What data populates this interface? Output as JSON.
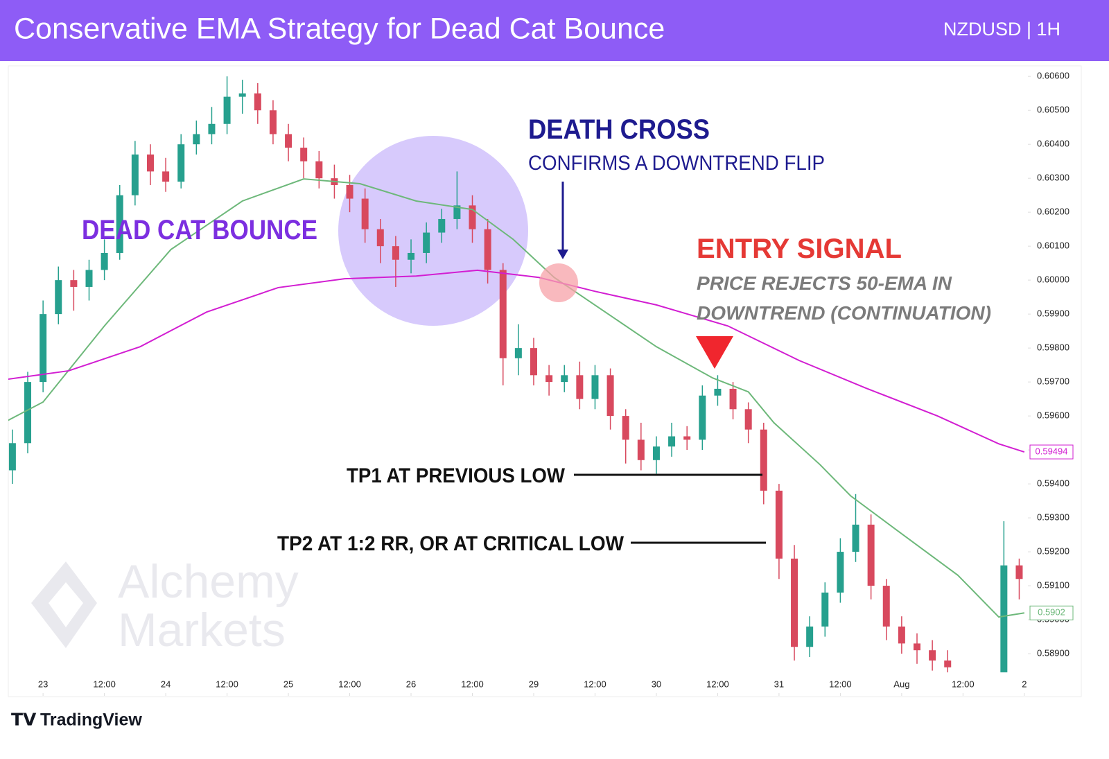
{
  "chart_data": {
    "type": "candlestick",
    "title": "Conservative EMA Strategy for Dead Cat Bounce",
    "subtitle": "NZDUSD | 1H",
    "up_color": "#26a08e",
    "down_color": "#d8495e",
    "x": [
      -6,
      -3,
      0,
      3,
      6,
      9,
      12,
      15,
      18,
      21,
      24,
      27,
      30,
      33,
      36,
      39,
      42,
      45,
      48,
      51,
      54,
      57,
      60,
      63,
      66,
      69,
      72,
      75,
      78,
      81,
      84,
      87,
      90,
      93,
      96,
      99,
      102,
      105,
      108,
      111,
      114,
      117,
      120,
      123,
      126,
      129,
      132,
      135,
      138,
      141,
      144,
      147,
      150,
      153,
      156,
      159,
      162,
      165,
      168,
      171,
      174,
      177,
      188,
      191
    ],
    "open": [
      0.5944,
      0.5952,
      0.597,
      0.599,
      0.6,
      0.5998,
      0.6003,
      0.6008,
      0.6025,
      0.6037,
      0.6032,
      0.6029,
      0.604,
      0.6043,
      0.6046,
      0.6054,
      0.6055,
      0.605,
      0.6043,
      0.6039,
      0.6035,
      0.603,
      0.6028,
      0.6024,
      0.6015,
      0.601,
      0.6006,
      0.6008,
      0.6014,
      0.6018,
      0.6022,
      0.6015,
      0.6003,
      0.5977,
      0.598,
      0.5972,
      0.597,
      0.5972,
      0.5965,
      0.5972,
      0.596,
      0.5953,
      0.5947,
      0.5951,
      0.5954,
      0.5953,
      0.5966,
      0.5968,
      0.5962,
      0.5956,
      0.5938,
      0.5918,
      0.5892,
      0.5898,
      0.5908,
      0.592,
      0.5928,
      0.591,
      0.5898,
      0.5893,
      0.5891,
      0.5888,
      0.588,
      0.5916
    ],
    "high": [
      0.5956,
      0.5973,
      0.5994,
      0.6004,
      0.6003,
      0.6006,
      0.6012,
      0.6028,
      0.6041,
      0.604,
      0.6036,
      0.6043,
      0.6047,
      0.6051,
      0.606,
      0.6059,
      0.6058,
      0.6053,
      0.6046,
      0.6042,
      0.6038,
      0.6034,
      0.6031,
      0.6027,
      0.6018,
      0.6013,
      0.6012,
      0.6017,
      0.6021,
      0.6032,
      0.6025,
      0.6018,
      0.6005,
      0.5987,
      0.5983,
      0.5975,
      0.5975,
      0.5976,
      0.5975,
      0.5974,
      0.5962,
      0.5958,
      0.5954,
      0.5958,
      0.5957,
      0.5969,
      0.5972,
      0.597,
      0.5964,
      0.5958,
      0.594,
      0.5922,
      0.5901,
      0.5911,
      0.5924,
      0.5937,
      0.5931,
      0.5912,
      0.5901,
      0.5896,
      0.5894,
      0.5891,
      0.5929,
      0.5918
    ],
    "low": [
      0.594,
      0.5949,
      0.5967,
      0.5987,
      0.5991,
      0.5994,
      0.6,
      0.6006,
      0.6022,
      0.6028,
      0.6026,
      0.6027,
      0.6037,
      0.604,
      0.6043,
      0.6049,
      0.6046,
      0.604,
      0.6035,
      0.603,
      0.6027,
      0.6024,
      0.602,
      0.6011,
      0.6005,
      0.5998,
      0.6002,
      0.6005,
      0.6011,
      0.6015,
      0.6011,
      0.5999,
      0.5969,
      0.5972,
      0.5969,
      0.5966,
      0.5967,
      0.5962,
      0.5962,
      0.5956,
      0.5946,
      0.5944,
      0.5943,
      0.5948,
      0.595,
      0.595,
      0.5963,
      0.5959,
      0.5952,
      0.5934,
      0.5912,
      0.5888,
      0.5889,
      0.5895,
      0.5905,
      0.5917,
      0.5906,
      0.5894,
      0.589,
      0.5887,
      0.5885,
      0.5883,
      0.5876,
      0.5906
    ],
    "close": [
      0.5952,
      0.597,
      0.599,
      0.6,
      0.5998,
      0.6003,
      0.6008,
      0.6025,
      0.6037,
      0.6032,
      0.6029,
      0.604,
      0.6043,
      0.6046,
      0.6054,
      0.6055,
      0.605,
      0.6043,
      0.6039,
      0.6035,
      0.603,
      0.6028,
      0.6024,
      0.6015,
      0.601,
      0.6006,
      0.6008,
      0.6014,
      0.6018,
      0.6022,
      0.6015,
      0.6003,
      0.5977,
      0.598,
      0.5972,
      0.597,
      0.5972,
      0.5965,
      0.5972,
      0.596,
      0.5953,
      0.5947,
      0.5951,
      0.5954,
      0.5953,
      0.5966,
      0.5968,
      0.5962,
      0.5956,
      0.5938,
      0.5918,
      0.5892,
      0.5898,
      0.5908,
      0.592,
      0.5928,
      0.591,
      0.5898,
      0.5893,
      0.5891,
      0.5888,
      0.5886,
      0.5916,
      0.5912
    ],
    "series": [
      {
        "color": "#6db87a",
        "x": [
          -7,
          0,
          12,
          25,
          39,
          51,
          62,
          73,
          84,
          92,
          100,
          110,
          120,
          131,
          138,
          143,
          152,
          158,
          168,
          179,
          187,
          192
        ],
        "values": [
          0.59586,
          0.59641,
          0.59865,
          0.6009,
          0.60233,
          0.60298,
          0.60284,
          0.60233,
          0.60208,
          0.6012,
          0.60008,
          0.59906,
          0.59804,
          0.59712,
          0.59671,
          0.5958,
          0.59457,
          0.59365,
          0.59253,
          0.59131,
          0.59008,
          0.5902
        ]
      },
      {
        "color": "#d21ed2",
        "x": [
          -7,
          5,
          19,
          32,
          46,
          59,
          73,
          85,
          97,
          108,
          120,
          134,
          148,
          161,
          175,
          187,
          192
        ],
        "values": [
          0.59708,
          0.59733,
          0.59804,
          0.59906,
          0.59978,
          0.60004,
          0.60012,
          0.60029,
          0.60008,
          0.59967,
          0.59927,
          0.59865,
          0.59763,
          0.59682,
          0.596,
          0.59518,
          0.59494
        ]
      }
    ],
    "xlim": [
      -6.8,
      192.7
    ],
    "ylim": [
      0.58845,
      0.60631
    ],
    "xticks": [
      {
        "value": 0,
        "label": "23"
      },
      {
        "value": 12,
        "label": "12:00"
      },
      {
        "value": 24,
        "label": "24"
      },
      {
        "value": 36,
        "label": "12:00"
      },
      {
        "value": 48,
        "label": "25"
      },
      {
        "value": 60,
        "label": "12:00"
      },
      {
        "value": 72,
        "label": "26"
      },
      {
        "value": 84,
        "label": "12:00"
      },
      {
        "value": 96,
        "label": "29"
      },
      {
        "value": 108,
        "label": "12:00"
      },
      {
        "value": 120,
        "label": "30"
      },
      {
        "value": 132,
        "label": "12:00"
      },
      {
        "value": 144,
        "label": "31"
      },
      {
        "value": 156,
        "label": "12:00"
      },
      {
        "value": 168,
        "label": "Aug"
      },
      {
        "value": 180,
        "label": "12:00"
      },
      {
        "value": 192,
        "label": "2"
      }
    ],
    "yticks": [
      {
        "value": 0.606,
        "label": "0.60600"
      },
      {
        "value": 0.605,
        "label": "0.60500"
      },
      {
        "value": 0.604,
        "label": "0.60400"
      },
      {
        "value": 0.603,
        "label": "0.60300"
      },
      {
        "value": 0.602,
        "label": "0.60200"
      },
      {
        "value": 0.601,
        "label": "0.60100"
      },
      {
        "value": 0.6,
        "label": "0.60000"
      },
      {
        "value": 0.599,
        "label": "0.59900"
      },
      {
        "value": 0.598,
        "label": "0.59800"
      },
      {
        "value": 0.597,
        "label": "0.59700"
      },
      {
        "value": 0.596,
        "label": "0.59600"
      },
      {
        "value": 0.595,
        "label": "0.59500"
      },
      {
        "value": 0.594,
        "label": "0.59400"
      },
      {
        "value": 0.593,
        "label": "0.59300"
      },
      {
        "value": 0.592,
        "label": "0.59200"
      },
      {
        "value": 0.591,
        "label": "0.59100"
      },
      {
        "value": 0.59,
        "label": "0.59000"
      },
      {
        "value": 0.589,
        "label": "0.58900"
      }
    ],
    "annotations": {
      "dead_cat": "DEAD CAT BOUNCE",
      "death_cross": "DEATH CROSS",
      "death_cross_note": "CONFIRMS A DOWNTREND FLIP",
      "entry": "ENTRY SIGNAL",
      "entry_note_1": "PRICE REJECTS 50-EMA IN",
      "entry_note_2": "DOWNTREND (CONTINUATION)",
      "tp1": "TP1 AT PREVIOUS LOW",
      "tp2": "TP2 AT 1:2 RR, OR AT CRITICAL LOW"
    },
    "watermark": [
      "Alchemy",
      "Markets"
    ],
    "footer": "TradingView"
  }
}
